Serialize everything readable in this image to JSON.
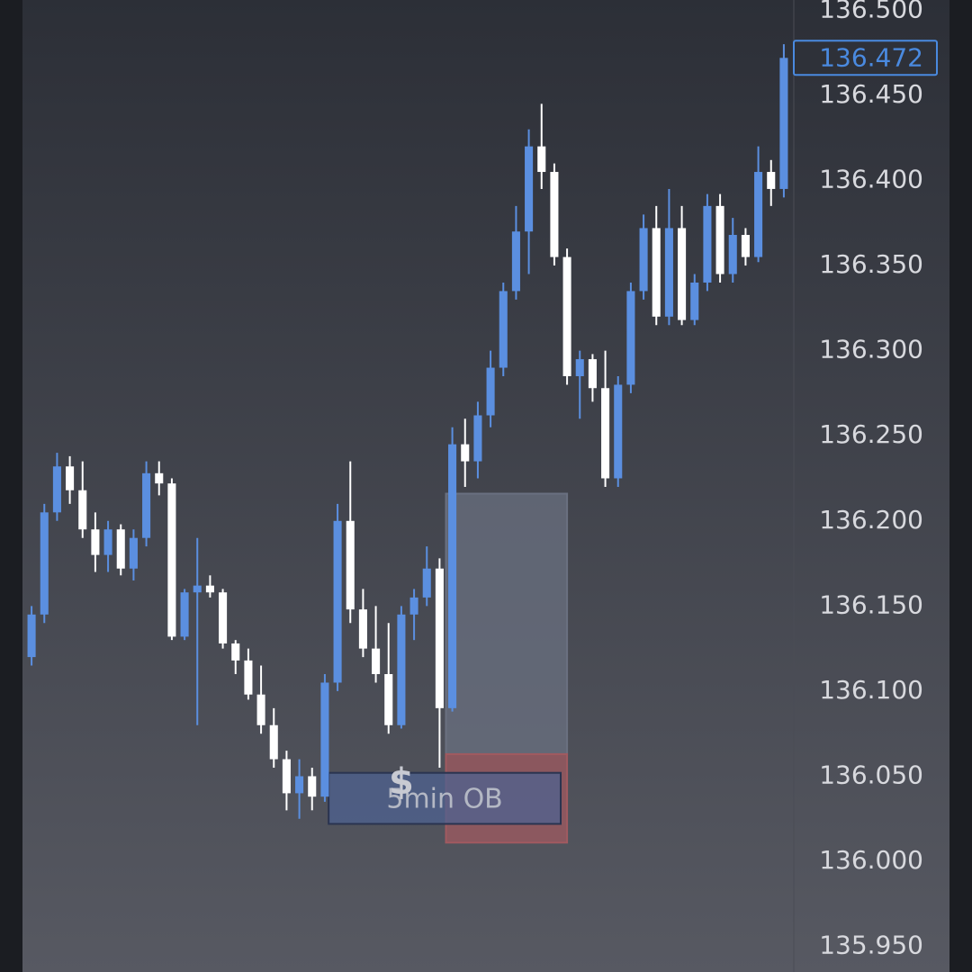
{
  "chart_data": {
    "type": "candlestick",
    "up_color": "#5b8fe0",
    "down_color": "#ffffff",
    "ylim": [
      135.935,
      136.506
    ],
    "yticks": [
      {
        "value": 136.5,
        "label": "136.500"
      },
      {
        "value": 136.45,
        "label": "136.450"
      },
      {
        "value": 136.4,
        "label": "136.400"
      },
      {
        "value": 136.35,
        "label": "136.350"
      },
      {
        "value": 136.3,
        "label": "136.300"
      },
      {
        "value": 136.25,
        "label": "136.250"
      },
      {
        "value": 136.2,
        "label": "136.200"
      },
      {
        "value": 136.15,
        "label": "136.150"
      },
      {
        "value": 136.1,
        "label": "136.100"
      },
      {
        "value": 136.05,
        "label": "136.050"
      },
      {
        "value": 136.0,
        "label": "136.000"
      },
      {
        "value": 135.95,
        "label": "135.950"
      }
    ],
    "grid": false,
    "last_price": {
      "value": 136.472,
      "label": "136.472",
      "color": "#4a8ae0"
    },
    "open": [
      136.12,
      136.145,
      136.205,
      136.232,
      136.218,
      136.195,
      136.18,
      136.195,
      136.172,
      136.19,
      136.228,
      136.222,
      136.132,
      136.158,
      136.162,
      136.158,
      136.128,
      136.118,
      136.098,
      136.08,
      136.06,
      136.04,
      136.05,
      136.038,
      136.105,
      136.2,
      136.148,
      136.125,
      136.11,
      136.08,
      136.145,
      136.155,
      136.172,
      136.09,
      136.245,
      136.235,
      136.262,
      136.29,
      136.335,
      136.37,
      136.42,
      136.405,
      136.355,
      136.285,
      136.295,
      136.278,
      136.225,
      136.28,
      136.335,
      136.372,
      136.32,
      136.372,
      136.318,
      136.34,
      136.385,
      136.345,
      136.368,
      136.355,
      136.405,
      136.395
    ],
    "high": [
      136.15,
      136.21,
      136.24,
      136.238,
      136.235,
      136.205,
      136.2,
      136.198,
      136.195,
      136.235,
      136.235,
      136.225,
      136.16,
      136.19,
      136.168,
      136.16,
      136.13,
      136.125,
      136.115,
      136.09,
      136.065,
      136.06,
      136.055,
      136.11,
      136.21,
      136.235,
      136.16,
      136.15,
      136.14,
      136.15,
      136.16,
      136.185,
      136.178,
      136.255,
      136.26,
      136.27,
      136.3,
      136.34,
      136.385,
      136.43,
      136.445,
      136.41,
      136.36,
      136.3,
      136.298,
      136.3,
      136.285,
      136.34,
      136.38,
      136.385,
      136.395,
      136.385,
      136.345,
      136.392,
      136.392,
      136.378,
      136.372,
      136.42,
      136.412,
      136.48
    ],
    "low": [
      136.115,
      136.14,
      136.2,
      136.21,
      136.19,
      136.17,
      136.17,
      136.168,
      136.165,
      136.185,
      136.215,
      136.13,
      136.13,
      136.08,
      136.155,
      136.125,
      136.11,
      136.095,
      136.075,
      136.055,
      136.03,
      136.025,
      136.03,
      136.035,
      136.1,
      136.14,
      136.12,
      136.105,
      136.075,
      136.078,
      136.13,
      136.15,
      136.055,
      136.088,
      136.22,
      136.225,
      136.255,
      136.285,
      136.33,
      136.345,
      136.395,
      136.35,
      136.28,
      136.26,
      136.27,
      136.22,
      136.22,
      136.275,
      136.33,
      136.315,
      136.315,
      136.315,
      136.315,
      136.335,
      136.34,
      136.34,
      136.35,
      136.352,
      136.385,
      136.39
    ],
    "close": [
      136.145,
      136.205,
      136.232,
      136.218,
      136.195,
      136.18,
      136.195,
      136.172,
      136.19,
      136.228,
      136.222,
      136.132,
      136.158,
      136.162,
      136.158,
      136.128,
      136.118,
      136.098,
      136.08,
      136.06,
      136.04,
      136.05,
      136.038,
      136.105,
      136.2,
      136.148,
      136.125,
      136.11,
      136.08,
      136.145,
      136.155,
      136.172,
      136.09,
      136.245,
      136.235,
      136.262,
      136.29,
      136.335,
      136.37,
      136.42,
      136.405,
      136.355,
      136.285,
      136.295,
      136.278,
      136.225,
      136.28,
      136.335,
      136.372,
      136.32,
      136.372,
      136.318,
      136.34,
      136.385,
      136.345,
      136.368,
      136.355,
      136.405,
      136.395,
      136.472
    ],
    "zones": [
      {
        "x": [
          32.5,
          42
        ],
        "ylim": [
          136.063,
          136.216
        ],
        "color": "#6a7080"
      },
      {
        "x": [
          32.5,
          42
        ],
        "ylim": [
          136.011,
          136.063
        ],
        "color": "#a05a60"
      },
      {
        "label": "5min OB",
        "x": [
          23.3,
          41.5
        ],
        "ylim": [
          136.022,
          136.052
        ],
        "color": "#4d6290"
      }
    ],
    "annotations": [
      {
        "text": "$",
        "x": 29,
        "y": 136.055
      }
    ]
  }
}
